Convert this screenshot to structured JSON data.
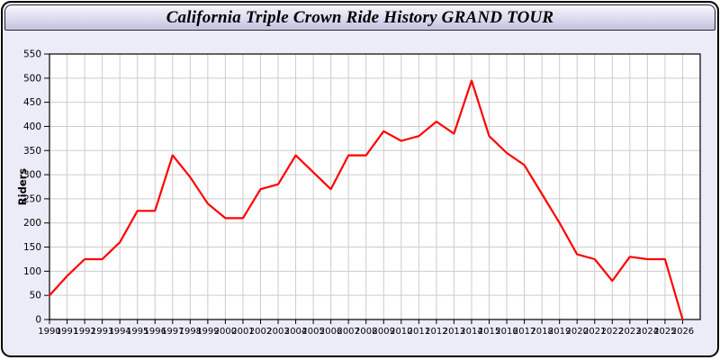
{
  "window": {
    "title": "California Triple Crown Ride History GRAND TOUR"
  },
  "colors": {
    "line": "#ff0000",
    "grid": "#cccccc",
    "axis": "#000000",
    "plot_bg": "#ffffff",
    "window_bg": "#ececf9",
    "titlebar_top": "#ffffff",
    "titlebar_bottom": "#c4c4e0",
    "border": "#000000",
    "tick_label": "#000000"
  },
  "chart_data": {
    "type": "line",
    "title": "California Triple Crown Ride History GRAND TOUR",
    "xlabel": "",
    "ylabel": "Riders",
    "series_name": "Riders",
    "legend_position": "none",
    "grid": true,
    "ylim": [
      0,
      550
    ],
    "ytick_step": 50,
    "xlim": [
      1990,
      2027
    ],
    "x": [
      1990,
      1991,
      1992,
      1993,
      1994,
      1995,
      1996,
      1997,
      1998,
      1999,
      2000,
      2001,
      2002,
      2003,
      2004,
      2005,
      2006,
      2007,
      2008,
      2009,
      2010,
      2011,
      2012,
      2013,
      2014,
      2015,
      2016,
      2017,
      2018,
      2019,
      2020,
      2021,
      2022,
      2023,
      2024,
      2025,
      2026
    ],
    "values": [
      50,
      90,
      125,
      125,
      160,
      225,
      225,
      340,
      295,
      240,
      210,
      210,
      270,
      280,
      340,
      305,
      270,
      340,
      340,
      390,
      370,
      380,
      410,
      385,
      495,
      380,
      345,
      320,
      260,
      200,
      135,
      125,
      80,
      130,
      125,
      125,
      0
    ]
  }
}
